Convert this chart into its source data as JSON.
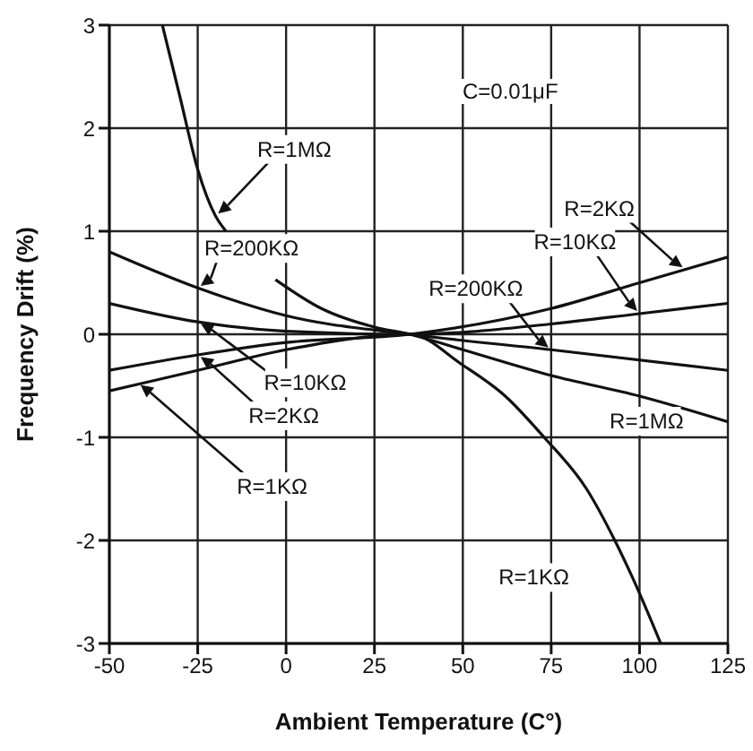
{
  "chart_data": {
    "type": "line",
    "xlabel": "Ambient Temperature (C°)",
    "ylabel": "Frequency Drift (%)",
    "xlim": [
      -50,
      125
    ],
    "xticks": [
      -50,
      -25,
      0,
      25,
      50,
      75,
      100,
      125
    ],
    "ylim": [
      -3,
      3
    ],
    "yticks": [
      -3,
      -2,
      -1,
      0,
      1,
      2,
      3
    ],
    "grid": true,
    "series": [
      {
        "color": "#111111",
        "x": [
          -35,
          -30,
          -25,
          -20,
          -17,
          -10,
          -3,
          10,
          25,
          35,
          50,
          75,
          100,
          125
        ],
        "values": [
          3,
          2.3,
          1.6,
          1.15,
          1.0,
          null,
          0.53,
          0.25,
          0.07,
          0,
          -0.15,
          -0.4,
          -0.6,
          -0.85
        ]
      },
      {
        "color": "#111111",
        "x": [
          -50,
          -25,
          0,
          35,
          75,
          125
        ],
        "values": [
          0.8,
          0.45,
          0.18,
          0,
          -0.15,
          -0.35
        ]
      },
      {
        "color": "#111111",
        "x": [
          -50,
          -25,
          0,
          35,
          75,
          100,
          125
        ],
        "values": [
          0.3,
          0.12,
          0.03,
          0,
          0.1,
          0.2,
          0.3
        ]
      },
      {
        "color": "#111111",
        "x": [
          -50,
          -25,
          0,
          35,
          75,
          100,
          125
        ],
        "values": [
          -0.35,
          -0.2,
          -0.08,
          0,
          0.25,
          0.5,
          0.75
        ]
      },
      {
        "color": "#111111",
        "x": [
          -50,
          -25,
          0,
          35,
          50,
          62,
          73,
          85,
          93,
          98,
          106
        ],
        "values": [
          -0.55,
          -0.35,
          -0.15,
          0,
          -0.3,
          -0.6,
          -1.0,
          -1.5,
          -2.0,
          -2.36,
          -3
        ]
      }
    ],
    "annotations": [
      "C=0.01μF",
      {
        "text": "R=1MΩ",
        "x": -20,
        "y": 1.15
      },
      {
        "text": "R=200KΩ",
        "x": -25,
        "y": 0.45
      },
      {
        "text": "R=2KΩ",
        "x": 113,
        "y": 0.63
      },
      {
        "text": "R=10KΩ",
        "x": 100,
        "y": 0.2
      },
      {
        "text": "R=200KΩ",
        "x": 75,
        "y": -0.15
      },
      {
        "text": "R=10KΩ",
        "x": -25,
        "y": 0.12
      },
      {
        "text": "R=2KΩ",
        "x": -25,
        "y": -0.2
      },
      {
        "text": "R=1KΩ",
        "x": -42,
        "y": -0.47
      },
      {
        "text": "R=1MΩ",
        "x": 100,
        "y": -0.6
      },
      {
        "text": "R=1KΩ",
        "x": 98,
        "y": -2.36
      }
    ]
  }
}
